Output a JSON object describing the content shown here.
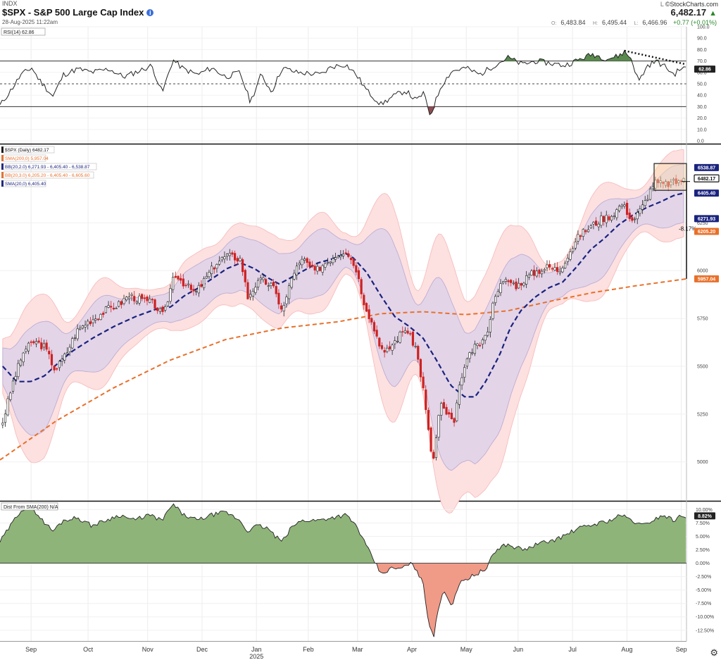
{
  "header": {
    "exchange": "INDX",
    "title": "$SPX - S&P 500 Large Cap Index",
    "date": "28-Aug-2025 11:22am",
    "logo": "©StockCharts.com",
    "logo_prefix": "L",
    "last": "6,482.17",
    "open": "6,483.84",
    "high": "6,495.44",
    "low": "6,466.96",
    "change": "+0.77 (+0.01%)",
    "label_open": "O:",
    "label_high": "H:",
    "label_low": "L:"
  },
  "colors": {
    "up": "#111111",
    "down": "#cc2222",
    "sma200": "#e8702a",
    "sma20": "#1a237e",
    "bb2_fill": "#e3d4e8",
    "bb3_fill": "#fde0e0",
    "rsi_green": "#5a8a4e",
    "rsi_red": "#8e4d52",
    "dist_pos": "#8fb47a",
    "dist_neg": "#f09a88"
  },
  "chart_data": [
    {
      "panel": "rsi",
      "type": "line",
      "legend": "RSI(14) 62.86",
      "value_label": "62.86",
      "ylim": [
        0,
        100
      ],
      "yticks": [
        "100.0",
        "90.0",
        "80.0",
        "70.0",
        "60.0",
        "50.0",
        "40.0",
        "30.0",
        "20.0",
        "10.0",
        "0.0"
      ],
      "overbought": 70,
      "oversold": 30,
      "midline": 50,
      "trendline": "dotted down-sloping line across late-August RSI highs",
      "anchors": [
        [
          0,
          31
        ],
        [
          15,
          44
        ],
        [
          30,
          58
        ],
        [
          45,
          64
        ],
        [
          55,
          54
        ],
        [
          75,
          39
        ],
        [
          90,
          58
        ],
        [
          110,
          63
        ],
        [
          130,
          60
        ],
        [
          155,
          63
        ],
        [
          175,
          56
        ],
        [
          200,
          62
        ],
        [
          215,
          66
        ],
        [
          230,
          42
        ],
        [
          245,
          71
        ],
        [
          260,
          63
        ],
        [
          280,
          58
        ],
        [
          300,
          64
        ],
        [
          320,
          56
        ],
        [
          340,
          60
        ],
        [
          355,
          34
        ],
        [
          370,
          58
        ],
        [
          385,
          43
        ],
        [
          400,
          64
        ],
        [
          420,
          60
        ],
        [
          440,
          59
        ],
        [
          455,
          58
        ],
        [
          470,
          65
        ],
        [
          490,
          67
        ],
        [
          505,
          58
        ],
        [
          520,
          44
        ],
        [
          540,
          32
        ],
        [
          560,
          40
        ],
        [
          575,
          44
        ],
        [
          590,
          35
        ],
        [
          600,
          42
        ],
        [
          610,
          22
        ],
        [
          625,
          48
        ],
        [
          640,
          61
        ],
        [
          660,
          64
        ],
        [
          680,
          58
        ],
        [
          700,
          66
        ],
        [
          720,
          73
        ],
        [
          740,
          67
        ],
        [
          760,
          70
        ],
        [
          780,
          68
        ],
        [
          800,
          66
        ],
        [
          820,
          71
        ],
        [
          840,
          76
        ],
        [
          860,
          72
        ],
        [
          875,
          74
        ],
        [
          885,
          78
        ],
        [
          895,
          72
        ],
        [
          905,
          52
        ],
        [
          918,
          66
        ],
        [
          930,
          70
        ],
        [
          945,
          64
        ],
        [
          955,
          58
        ],
        [
          966,
          64
        ],
        [
          973,
          63
        ]
      ]
    },
    {
      "panel": "price",
      "type": "candlestick",
      "series": [
        {
          "name": "$SPX (Daily)",
          "legend": "$SPX (Daily) 6482.17",
          "last": 6482.17
        },
        {
          "name": "SMA(200,0)",
          "legend": "SMA(200,0) 5,957.04",
          "last": 5957.04
        },
        {
          "name": "BB(20,2.0)",
          "legend": "BB(20,2.0) 6,271.93 - 6,405.40 - 6,538.87",
          "values": [
            6271.93,
            6405.4,
            6538.87
          ]
        },
        {
          "name": "BB(20,3.0)",
          "legend": "BB(20,3.0) 6,205.20 - 6,405.40 - 6,605.60",
          "values": [
            6205.2,
            6405.4,
            6605.6
          ]
        },
        {
          "name": "SMA(20,0)",
          "legend": "SMA(20,0) 6,405.40",
          "last": 6405.4
        }
      ],
      "ylim": [
        4800,
        6660
      ],
      "yticks": [
        "6250",
        "6000",
        "5750",
        "5500",
        "5250",
        "5000"
      ],
      "ytick_values": [
        6250,
        6000,
        5750,
        5500,
        5250,
        5000
      ],
      "right_labels": [
        {
          "text": "6538.87",
          "value": 6538.87,
          "color": "#1a237e"
        },
        {
          "text": "6482.17",
          "value": 6482.17,
          "color": "#111111"
        },
        {
          "text": "6405.40",
          "value": 6405.4,
          "color": "#1a237e"
        },
        {
          "text": "6271.93",
          "value": 6271.93,
          "color": "#1a237e"
        },
        {
          "text": "6205.20",
          "value": 6205.2,
          "color": "#e8702a"
        },
        {
          "text": "5957.04",
          "value": 5957.04,
          "color": "#e8702a"
        }
      ],
      "annotation": "-8.17%",
      "close_anchors": [
        [
          0,
          5210
        ],
        [
          15,
          5420
        ],
        [
          30,
          5580
        ],
        [
          45,
          5630
        ],
        [
          60,
          5600
        ],
        [
          75,
          5480
        ],
        [
          90,
          5560
        ],
        [
          105,
          5680
        ],
        [
          120,
          5730
        ],
        [
          135,
          5760
        ],
        [
          150,
          5800
        ],
        [
          165,
          5820
        ],
        [
          180,
          5870
        ],
        [
          195,
          5850
        ],
        [
          215,
          5830
        ],
        [
          230,
          5760
        ],
        [
          245,
          5990
        ],
        [
          260,
          5930
        ],
        [
          275,
          5880
        ],
        [
          290,
          5960
        ],
        [
          305,
          6040
        ],
        [
          320,
          6080
        ],
        [
          340,
          6060
        ],
        [
          350,
          5860
        ],
        [
          360,
          5920
        ],
        [
          370,
          5950
        ],
        [
          385,
          5920
        ],
        [
          400,
          5790
        ],
        [
          415,
          5990
        ],
        [
          430,
          6060
        ],
        [
          445,
          5990
        ],
        [
          460,
          6040
        ],
        [
          475,
          6080
        ],
        [
          490,
          6110
        ],
        [
          505,
          6010
        ],
        [
          515,
          5850
        ],
        [
          530,
          5700
        ],
        [
          545,
          5560
        ],
        [
          560,
          5630
        ],
        [
          575,
          5700
        ],
        [
          590,
          5600
        ],
        [
          600,
          5400
        ],
        [
          610,
          5100
        ],
        [
          615,
          5000
        ],
        [
          625,
          5300
        ],
        [
          635,
          5250
        ],
        [
          645,
          5200
        ],
        [
          655,
          5450
        ],
        [
          670,
          5580
        ],
        [
          690,
          5650
        ],
        [
          705,
          5900
        ],
        [
          720,
          5950
        ],
        [
          735,
          5920
        ],
        [
          750,
          5970
        ],
        [
          765,
          6000
        ],
        [
          780,
          6020
        ],
        [
          795,
          6000
        ],
        [
          810,
          6100
        ],
        [
          825,
          6190
        ],
        [
          840,
          6230
        ],
        [
          855,
          6270
        ],
        [
          870,
          6290
        ],
        [
          885,
          6350
        ],
        [
          900,
          6260
        ],
        [
          915,
          6340
        ],
        [
          930,
          6460
        ],
        [
          945,
          6450
        ],
        [
          960,
          6460
        ],
        [
          973,
          6482
        ]
      ],
      "sma200_anchors": [
        [
          0,
          5010
        ],
        [
          80,
          5215
        ],
        [
          160,
          5385
        ],
        [
          240,
          5530
        ],
        [
          320,
          5640
        ],
        [
          400,
          5700
        ],
        [
          480,
          5733
        ],
        [
          540,
          5775
        ],
        [
          600,
          5785
        ],
        [
          660,
          5770
        ],
        [
          720,
          5790
        ],
        [
          780,
          5840
        ],
        [
          840,
          5885
        ],
        [
          900,
          5920
        ],
        [
          973,
          5957
        ]
      ],
      "sma20_anchors": [
        [
          0,
          5500
        ],
        [
          20,
          5420
        ],
        [
          40,
          5420
        ],
        [
          60,
          5450
        ],
        [
          80,
          5520
        ],
        [
          100,
          5580
        ],
        [
          130,
          5650
        ],
        [
          160,
          5710
        ],
        [
          190,
          5760
        ],
        [
          220,
          5800
        ],
        [
          240,
          5810
        ],
        [
          260,
          5870
        ],
        [
          280,
          5910
        ],
        [
          300,
          5960
        ],
        [
          320,
          6010
        ],
        [
          340,
          6040
        ],
        [
          360,
          6010
        ],
        [
          380,
          5960
        ],
        [
          395,
          5930
        ],
        [
          410,
          5960
        ],
        [
          430,
          6000
        ],
        [
          450,
          6040
        ],
        [
          470,
          6060
        ],
        [
          490,
          6090
        ],
        [
          500,
          6070
        ],
        [
          520,
          5990
        ],
        [
          540,
          5870
        ],
        [
          560,
          5760
        ],
        [
          580,
          5710
        ],
        [
          600,
          5650
        ],
        [
          620,
          5530
        ],
        [
          640,
          5400
        ],
        [
          660,
          5340
        ],
        [
          675,
          5340
        ],
        [
          690,
          5420
        ],
        [
          710,
          5560
        ],
        [
          725,
          5700
        ],
        [
          740,
          5790
        ],
        [
          760,
          5860
        ],
        [
          780,
          5910
        ],
        [
          800,
          5940
        ],
        [
          820,
          6020
        ],
        [
          840,
          6110
        ],
        [
          860,
          6170
        ],
        [
          880,
          6240
        ],
        [
          900,
          6290
        ],
        [
          920,
          6330
        ],
        [
          940,
          6360
        ],
        [
          960,
          6395
        ],
        [
          973,
          6405
        ]
      ]
    },
    {
      "panel": "dist",
      "type": "area",
      "legend": "Dist From SMA(200) N/A",
      "value_label": "8.82%",
      "ylim": [
        -14.5,
        11.5
      ],
      "yticks": [
        "10.00%",
        "7.50%",
        "5.00%",
        "2.50%",
        "0.00%",
        "-2.50%",
        "-5.00%",
        "-7.50%",
        "-10.00%",
        "-12.50%"
      ],
      "ytick_values": [
        10,
        7.5,
        5,
        2.5,
        0,
        -2.5,
        -5,
        -7.5,
        -10,
        -12.5
      ],
      "anchors": [
        [
          0,
          4
        ],
        [
          15,
          7
        ],
        [
          30,
          10
        ],
        [
          45,
          10.5
        ],
        [
          60,
          8
        ],
        [
          75,
          6
        ],
        [
          90,
          8
        ],
        [
          110,
          8.5
        ],
        [
          130,
          7
        ],
        [
          150,
          8
        ],
        [
          170,
          9
        ],
        [
          190,
          8
        ],
        [
          210,
          9
        ],
        [
          230,
          8
        ],
        [
          245,
          11
        ],
        [
          260,
          9
        ],
        [
          280,
          8
        ],
        [
          300,
          9
        ],
        [
          320,
          9.5
        ],
        [
          340,
          8
        ],
        [
          350,
          6
        ],
        [
          365,
          7
        ],
        [
          380,
          6.5
        ],
        [
          390,
          5
        ],
        [
          400,
          4
        ],
        [
          415,
          7
        ],
        [
          430,
          8
        ],
        [
          450,
          8
        ],
        [
          470,
          8.5
        ],
        [
          490,
          9
        ],
        [
          505,
          7
        ],
        [
          520,
          3
        ],
        [
          530,
          0.5
        ],
        [
          540,
          -2
        ],
        [
          555,
          -1
        ],
        [
          570,
          -1
        ],
        [
          580,
          0
        ],
        [
          590,
          -1
        ],
        [
          600,
          -4
        ],
        [
          605,
          -9
        ],
        [
          610,
          -12
        ],
        [
          615,
          -13.5
        ],
        [
          622,
          -8
        ],
        [
          630,
          -5
        ],
        [
          640,
          -8
        ],
        [
          650,
          -4
        ],
        [
          660,
          -3
        ],
        [
          675,
          -2
        ],
        [
          690,
          -1
        ],
        [
          700,
          2
        ],
        [
          715,
          3.5
        ],
        [
          730,
          3
        ],
        [
          745,
          2.5
        ],
        [
          760,
          3.5
        ],
        [
          775,
          4
        ],
        [
          790,
          4.5
        ],
        [
          805,
          5.5
        ],
        [
          820,
          6.5
        ],
        [
          835,
          7
        ],
        [
          850,
          7.5
        ],
        [
          865,
          8
        ],
        [
          880,
          9
        ],
        [
          895,
          8
        ],
        [
          910,
          7
        ],
        [
          925,
          8
        ],
        [
          940,
          9
        ],
        [
          955,
          8
        ],
        [
          965,
          8.8
        ],
        [
          973,
          8.82
        ]
      ]
    },
    {
      "panel": "xaxis",
      "months": [
        {
          "label": "Sep",
          "day": 12
        },
        {
          "label": "Oct",
          "day": 34
        },
        {
          "label": "Nov",
          "day": 57
        },
        {
          "label": "Dec",
          "day": 78
        },
        {
          "label": "Jan",
          "day": 99
        },
        {
          "label": "Feb",
          "day": 119
        },
        {
          "label": "Mar",
          "day": 138
        },
        {
          "label": "Apr",
          "day": 159
        },
        {
          "label": "May",
          "day": 180
        },
        {
          "label": "Jun",
          "day": 200
        },
        {
          "label": "Jul",
          "day": 221
        },
        {
          "label": "Aug",
          "day": 242
        },
        {
          "label": "Sep",
          "day": 263
        }
      ],
      "year_label": "2025",
      "year_day": 99,
      "total_days": 265
    }
  ]
}
